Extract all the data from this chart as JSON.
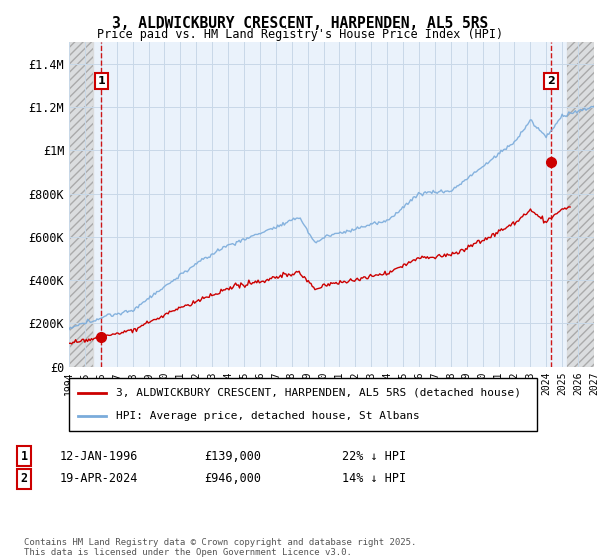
{
  "title": "3, ALDWICKBURY CRESCENT, HARPENDEN, AL5 5RS",
  "subtitle": "Price paid vs. HM Land Registry's House Price Index (HPI)",
  "ylabel_ticks": [
    "£0",
    "£200K",
    "£400K",
    "£600K",
    "£800K",
    "£1M",
    "£1.2M",
    "£1.4M"
  ],
  "ytick_values": [
    0,
    200000,
    400000,
    600000,
    800000,
    1000000,
    1200000,
    1400000
  ],
  "ylim": [
    0,
    1500000
  ],
  "xlim_start": 1994,
  "xlim_end": 2027,
  "hatch_left_end": 1995.5,
  "hatch_right_start": 2025.3,
  "point1": {
    "date_num": 1996.04,
    "value": 139000,
    "label": "1"
  },
  "point2": {
    "date_num": 2024.3,
    "value": 946000,
    "label": "2"
  },
  "legend_entry1": "3, ALDWICKBURY CRESCENT, HARPENDEN, AL5 5RS (detached house)",
  "legend_entry2": "HPI: Average price, detached house, St Albans",
  "ann1_box": "1",
  "ann1_date": "12-JAN-1996",
  "ann1_price": "£139,000",
  "ann1_hpi": "22% ↓ HPI",
  "ann2_box": "2",
  "ann2_date": "19-APR-2024",
  "ann2_price": "£946,000",
  "ann2_hpi": "14% ↓ HPI",
  "footer": "Contains HM Land Registry data © Crown copyright and database right 2025.\nThis data is licensed under the Open Government Licence v3.0.",
  "line_color_red": "#cc0000",
  "line_color_blue": "#7aabdb",
  "grid_color": "#c8d8e8",
  "box_color": "#cc0000",
  "plot_bg": "#eaf2fb",
  "hatch_bg": "#d8d8d8"
}
